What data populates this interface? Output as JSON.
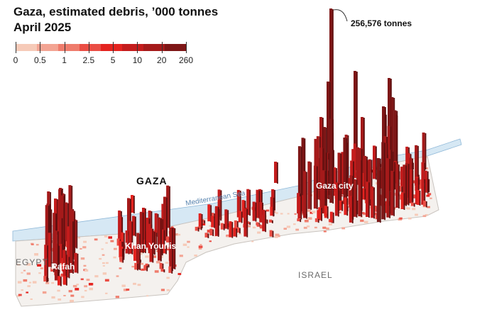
{
  "title": "Gaza, estimated debris, ’000 tonnes",
  "subtitle": "April 2025",
  "legend": {
    "labels": [
      "0",
      "0.5",
      "1",
      "2.5",
      "5",
      "10",
      "20",
      "260"
    ],
    "colors": [
      "#f6cab8",
      "#f3a493",
      "#ef7c6c",
      "#ea4d44",
      "#e4231f",
      "#c41c1c",
      "#a51a1a",
      "#7e1616"
    ]
  },
  "map_labels": {
    "gaza": "GAZA",
    "egypt": "EGYPT",
    "israel": "ISRAEL",
    "sea": "Mediterranean Sea",
    "gaza_city": "Gaza city",
    "khan_younis": "Khan Younis",
    "rafah": "Rafah"
  },
  "annotation": "256,576 tonnes",
  "colors": {
    "sea": "#d6e8f4",
    "sea_line": "#8fb8d8",
    "land": "#f4f1ee",
    "land_edge": "#c9c4bf",
    "label_dark": "#121212",
    "label_grey": "#6b6b6b"
  }
}
